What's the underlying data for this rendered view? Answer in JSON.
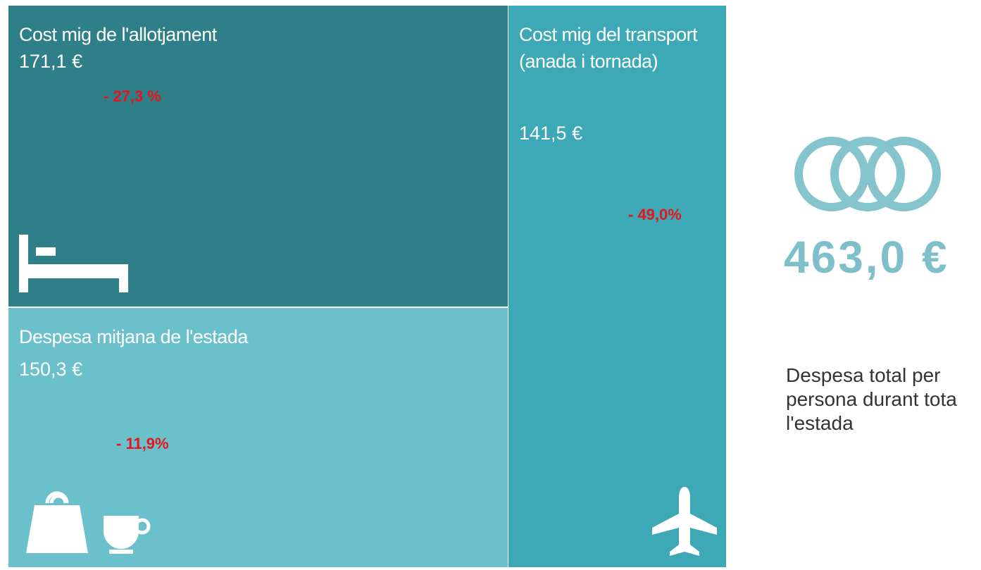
{
  "tiles": [
    {
      "label": "Cost mig de l'allotjament",
      "value": "171,1 €",
      "change": "- 27,3 %"
    },
    {
      "label": "Despesa mitjana de l'estada",
      "value": "150,3 €",
      "change": "- 11,9%"
    },
    {
      "label": "Cost mig del transport (anada i tornada)",
      "value": "141,5 €",
      "change": "- 49,0%"
    }
  ],
  "total": {
    "value": "463,0 €",
    "label": "Despesa total per persona durant tota l'estada"
  }
}
